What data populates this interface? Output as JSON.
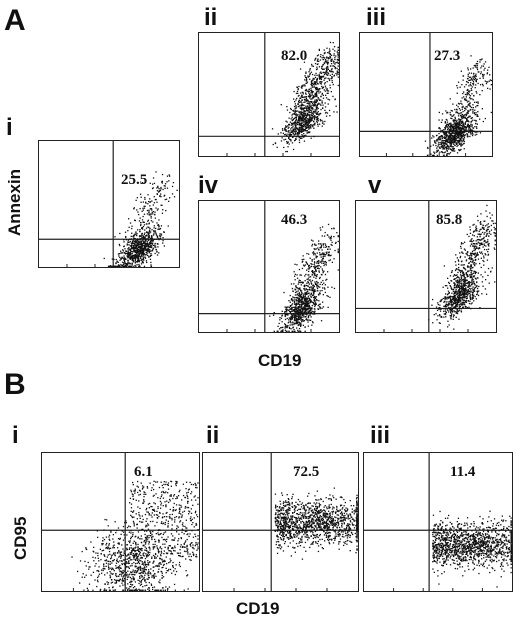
{
  "panel_a": {
    "letter": "A",
    "y_axis_label": "Annexin",
    "x_axis_label": "CD19",
    "plots": [
      {
        "label": "i",
        "value": "25.5"
      },
      {
        "label": "ii",
        "value": "82.0"
      },
      {
        "label": "iii",
        "value": "27.3"
      },
      {
        "label": "iv",
        "value": "46.3"
      },
      {
        "label": "v",
        "value": "85.8"
      }
    ]
  },
  "panel_b": {
    "letter": "B",
    "y_axis_label": "CD95",
    "x_axis_label": "CD19",
    "plots": [
      {
        "label": "i",
        "value": "6.1"
      },
      {
        "label": "ii",
        "value": "72.5"
      },
      {
        "label": "iii",
        "value": "11.4"
      }
    ]
  },
  "colors": {
    "dots": "#111111",
    "frame": "#222222",
    "background": "#ffffff"
  }
}
